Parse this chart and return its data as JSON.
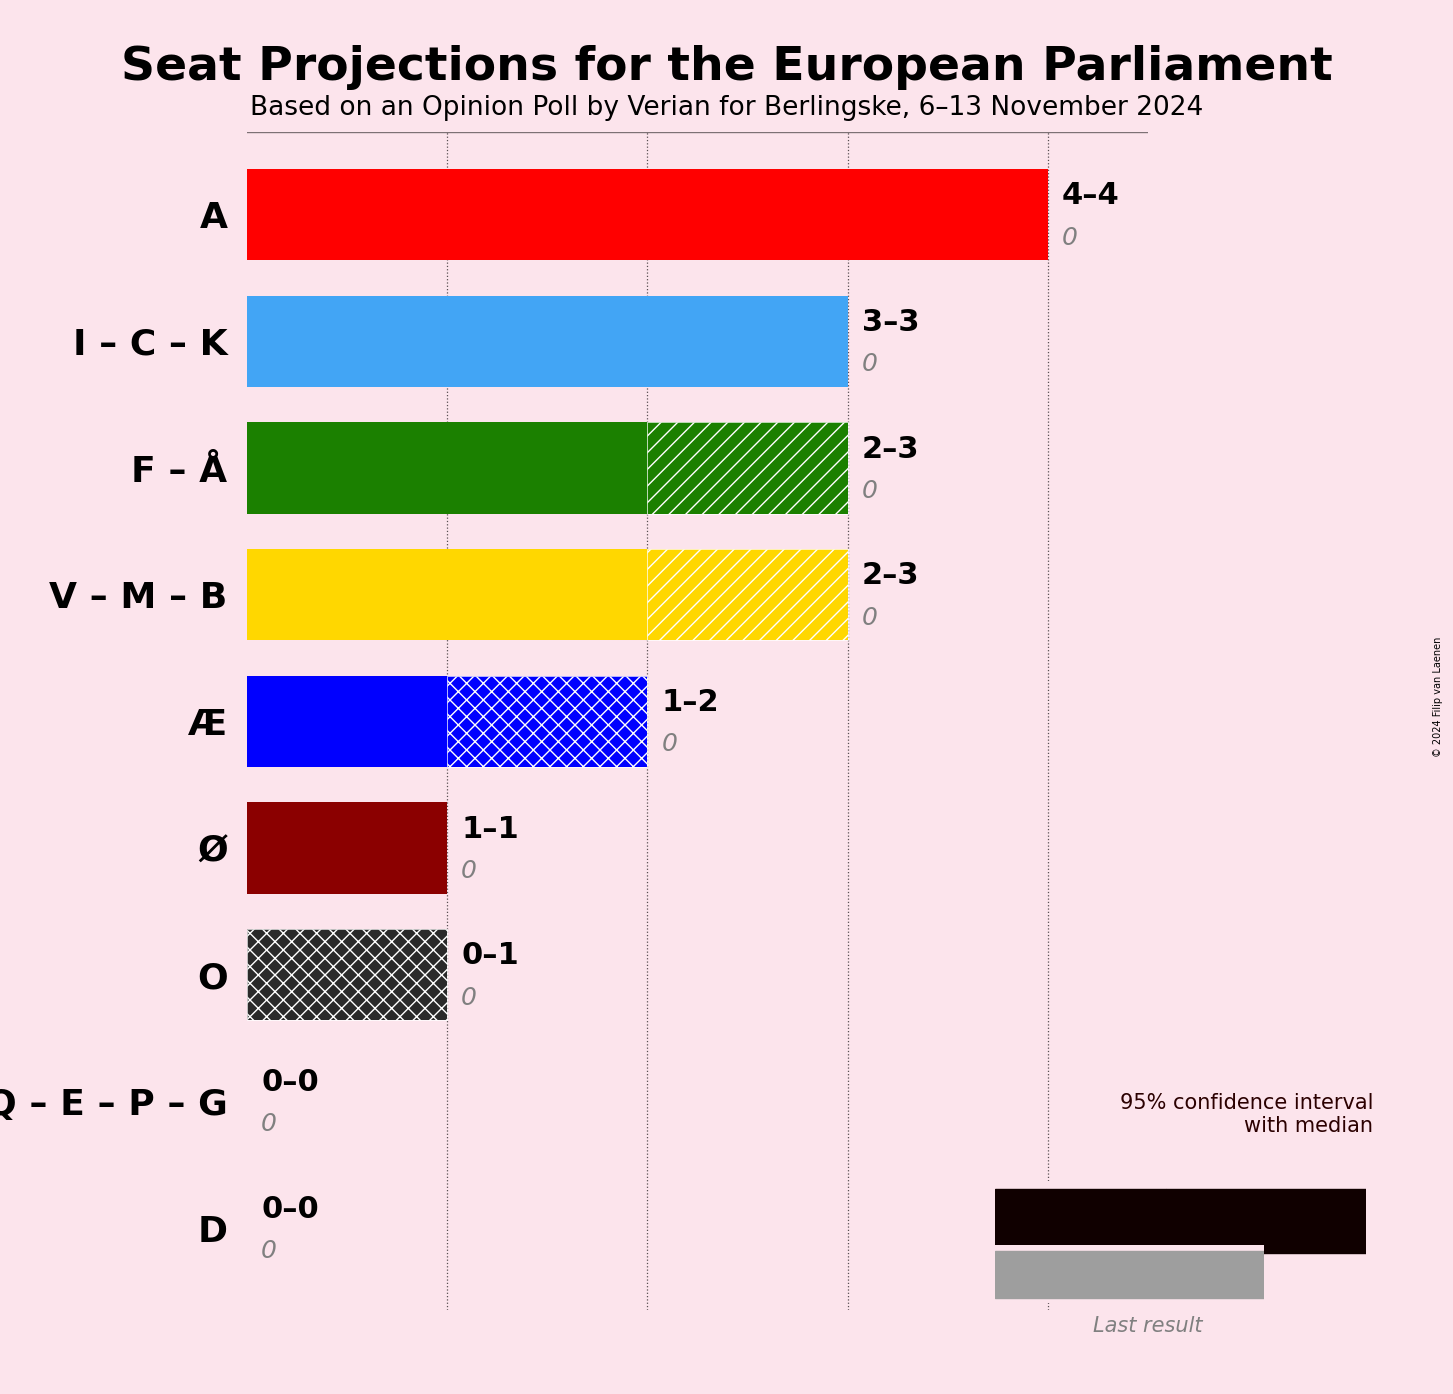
{
  "title": "Seat Projections for the European Parliament",
  "subtitle": "Based on an Opinion Poll by Verian for Berlingske, 6–13 November 2024",
  "copyright": "© 2024 Filip van Laenen",
  "background_color": "#fce4ec",
  "parties": [
    "A",
    "I – C – K",
    "F – Å",
    "V – M – B",
    "Æ",
    "Ø",
    "O",
    "Q – E – P – G",
    "D"
  ],
  "min_seats": [
    4,
    3,
    2,
    2,
    1,
    1,
    0,
    0,
    0
  ],
  "max_seats": [
    4,
    3,
    3,
    3,
    2,
    1,
    1,
    0,
    0
  ],
  "last_results": [
    0,
    0,
    0,
    0,
    0,
    0,
    0,
    0,
    0
  ],
  "colors": [
    "#ff0000",
    "#42a5f5",
    "#1b8000",
    "#ffd700",
    "#0000ff",
    "#8b0000",
    "#2a2a2a",
    "#c0c0c0",
    "#c0c0c0"
  ],
  "hatch_solid": [
    null,
    null,
    "//",
    "//",
    "xx",
    null,
    "xx",
    null,
    null
  ],
  "label_texts": [
    "4–4",
    "3–3",
    "2–3",
    "2–3",
    "1–2",
    "1–1",
    "0–1",
    "0–0",
    "0–0"
  ],
  "xlim_max": 4.5,
  "grid_dotted": [
    1,
    2,
    3,
    4
  ],
  "title_fontsize": 34,
  "subtitle_fontsize": 19,
  "label_fontsize": 22,
  "ytick_fontsize": 26,
  "bar_height": 0.72
}
